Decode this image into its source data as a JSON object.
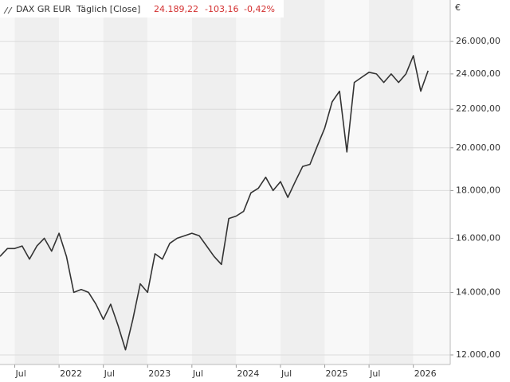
{
  "legend": {
    "name": "DAX GR EUR",
    "interval": "Täglich [Close]",
    "last": "24.189,22",
    "change": "-103,16",
    "change_pct": "-0,42%"
  },
  "chart_data": {
    "type": "line",
    "currency": "€",
    "log_scale": true,
    "grid": true,
    "color": "#333333",
    "x": [
      "2021-05",
      "2021-06",
      "2021-07",
      "2021-08",
      "2021-09",
      "2021-10",
      "2021-11",
      "2021-12",
      "2022-01",
      "2022-02",
      "2022-03",
      "2022-04",
      "2022-05",
      "2022-06",
      "2022-07",
      "2022-08",
      "2022-09",
      "2022-10",
      "2022-11",
      "2022-12",
      "2023-01",
      "2023-02",
      "2023-03",
      "2023-04",
      "2023-05",
      "2023-06",
      "2023-07",
      "2023-08",
      "2023-09",
      "2023-10",
      "2023-11",
      "2023-12",
      "2024-01",
      "2024-02",
      "2024-03",
      "2024-04",
      "2024-05",
      "2024-06",
      "2024-07",
      "2024-08",
      "2024-09",
      "2024-10",
      "2024-11",
      "2024-12",
      "2025-01",
      "2025-02",
      "2025-03",
      "2025-04",
      "2025-05",
      "2025-06",
      "2025-07",
      "2025-08",
      "2025-09",
      "2025-10",
      "2025-11",
      "2025-12",
      "2026-01",
      "2026-02",
      "2026-03"
    ],
    "values": [
      15300,
      15600,
      15600,
      15700,
      15200,
      15700,
      16000,
      15500,
      16200,
      15300,
      14000,
      14100,
      14000,
      13600,
      13100,
      13600,
      12900,
      12150,
      13100,
      14300,
      14000,
      15400,
      15200,
      15800,
      16000,
      16100,
      16200,
      16100,
      15700,
      15300,
      15000,
      16800,
      16900,
      17100,
      17900,
      18100,
      18600,
      18000,
      18400,
      17700,
      18400,
      19100,
      19200,
      20100,
      21000,
      22400,
      23000,
      19800,
      23500,
      23800,
      24100,
      24000,
      23500,
      24000,
      23500,
      24000,
      25100,
      23000,
      24189
    ],
    "xlim": [
      "2021-05",
      "2026-06"
    ],
    "xticks": [
      {
        "value": "2021-07",
        "label": "Jul"
      },
      {
        "value": "2022-01",
        "label": "2022"
      },
      {
        "value": "2022-07",
        "label": "Jul"
      },
      {
        "value": "2023-01",
        "label": "2023"
      },
      {
        "value": "2023-07",
        "label": "Jul"
      },
      {
        "value": "2024-01",
        "label": "2024"
      },
      {
        "value": "2024-07",
        "label": "Jul"
      },
      {
        "value": "2025-01",
        "label": "2025"
      },
      {
        "value": "2025-07",
        "label": "Jul"
      },
      {
        "value": "2026-01",
        "label": "2026"
      }
    ],
    "ylim": [
      11720,
      28800
    ],
    "yticks": [
      {
        "value": 12000,
        "label": "12.000,00"
      },
      {
        "value": 14000,
        "label": "14.000,00"
      },
      {
        "value": 16000,
        "label": "16.000,00"
      },
      {
        "value": 18000,
        "label": "18.000,00"
      },
      {
        "value": 20000,
        "label": "20.000,00"
      },
      {
        "value": 22000,
        "label": "22.000,00"
      },
      {
        "value": 24000,
        "label": "24.000,00"
      },
      {
        "value": 26000,
        "label": "26.000,00"
      }
    ]
  }
}
